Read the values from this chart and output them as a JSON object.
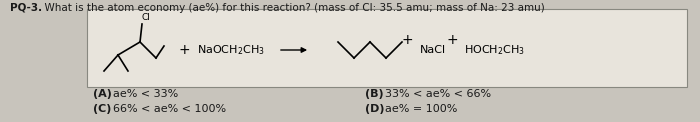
{
  "title_bold": "PQ-3.",
  "title_rest": "  What is the atom economy (ae%) for this reaction? (mass of Cl: 35.5 amu; mass of Na: 23 amu)",
  "box_facecolor": "#e8e4dc",
  "background_color": "#c8c4bc",
  "answer_A": "ae% < 33%",
  "answer_B": "33% < ae% < 66%",
  "answer_C": "66% < ae% < 100%",
  "answer_D": "ae% = 100%",
  "text_color": "#1a1a1a",
  "box_edge_color": "#888880"
}
